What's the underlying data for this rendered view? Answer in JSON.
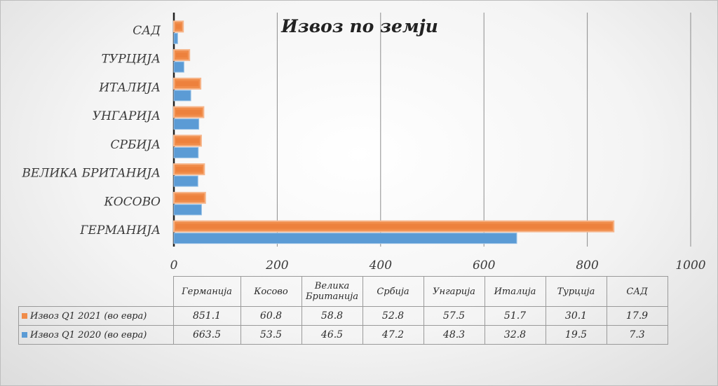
{
  "chart_data": {
    "type": "bar",
    "orientation": "horizontal",
    "title": "Извоз по земји",
    "axis_labels": [
      "САД",
      "ТУРЦИЈА",
      "ИТАЛИЈА",
      "УНГАРИЈА",
      "СРБИЈА",
      "ВЕЛИКА БРИТАНИЈА",
      "КОСОВО",
      "ГЕРМАНИЈА"
    ],
    "table_categories": [
      "Германија",
      "Косово",
      "Велика Британија",
      "Србија",
      "Унгарија",
      "Италија",
      "Турција",
      "САД"
    ],
    "xlim": [
      0,
      1000
    ],
    "xticks": [
      0,
      200,
      400,
      600,
      800,
      1000
    ],
    "grid": true,
    "legend": "data-table",
    "series": [
      {
        "name": "Извоз Q1 2021 (во евра)",
        "color": "#f08c4a",
        "values": [
          851.1,
          60.8,
          58.8,
          52.8,
          57.5,
          51.7,
          30.1,
          17.9
        ],
        "labels": [
          "851.1",
          "60.8",
          "58.8",
          "52.8",
          "57.5",
          "51.7",
          "30.1",
          "17.9"
        ]
      },
      {
        "name": "Извоз Q1 2020 (во евра)",
        "color": "#5b9bd5",
        "values": [
          663.5,
          53.5,
          46.5,
          47.2,
          48.3,
          32.8,
          19.5,
          7.3
        ],
        "labels": [
          "663.5",
          "53.5",
          "46.5",
          "47.2",
          "48.3",
          "32.8",
          "19.5",
          "7.3"
        ]
      }
    ]
  }
}
